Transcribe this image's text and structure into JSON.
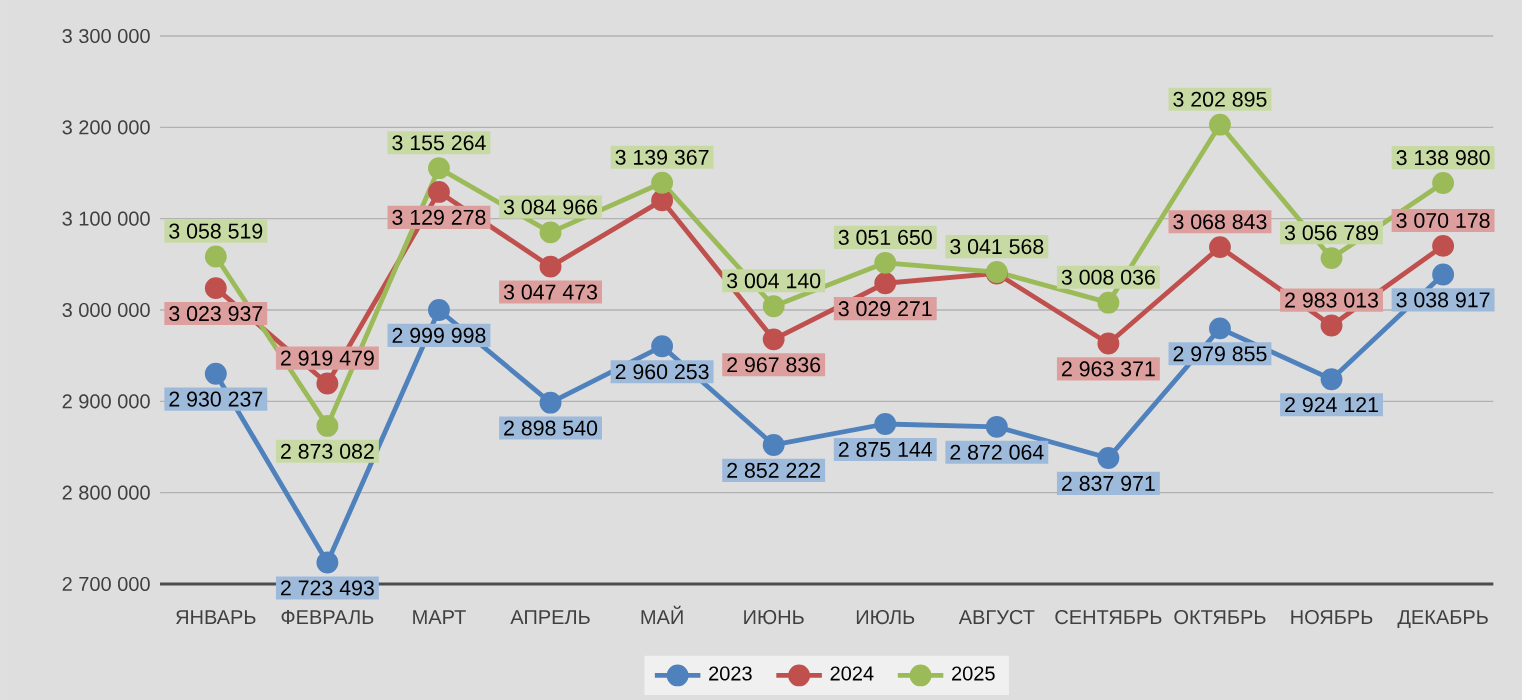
{
  "chart_data": {
    "type": "line",
    "categories": [
      "ЯНВАРЬ",
      "ФЕВРАЛЬ",
      "МАРТ",
      "АПРЕЛЬ",
      "МАЙ",
      "ИЮНЬ",
      "ИЮЛЬ",
      "АВГУСТ",
      "СЕНТЯБРЬ",
      "ОКТЯБРЬ",
      "НОЯБРЬ",
      "ДЕКАБРЬ"
    ],
    "series": [
      {
        "name": "2023",
        "color": "#4f81bd",
        "values": [
          2930237,
          2723493,
          2999998,
          2898540,
          2960253,
          2852222,
          2875144,
          2872064,
          2837971,
          2979855,
          2924121,
          3038917
        ],
        "value_labels": [
          "2 930 237",
          "2 723 493",
          "2 999 998",
          "2 898 540",
          "2 960 253",
          "2 852 222",
          "2 875 144",
          "2 872 064",
          "2 837 971",
          "2 979 855",
          "2 924 121",
          "3 038 917"
        ]
      },
      {
        "name": "2024",
        "color": "#c0504d",
        "values": [
          3023937,
          2919479,
          3129278,
          3047473,
          3120000,
          2967836,
          3029271,
          3040000,
          2963371,
          3068843,
          2983013,
          3070178
        ],
        "value_labels": [
          "3 023 937",
          "2 919 479",
          "3 129 278",
          "3 047 473",
          null,
          "2 967 836",
          "3 029 271",
          null,
          "2 963 371",
          "3 068 843",
          "2 983 013",
          "3 070 178"
        ]
      },
      {
        "name": "2025",
        "color": "#9bbb59",
        "values": [
          3058519,
          2873082,
          3155264,
          3084966,
          3139367,
          3004140,
          3051650,
          3041568,
          3008036,
          3202895,
          3056789,
          3138980
        ],
        "value_labels": [
          "3 058 519",
          "2 873 082",
          "3 155 264",
          "3 084 966",
          "3 139 367",
          "3 004 140",
          "3 051 650",
          "3 041 568",
          "3 008 036",
          "3 202 895",
          "3 056 789",
          "3 138 980"
        ]
      }
    ],
    "ylim": [
      2700000,
      3300000
    ],
    "yticks": [
      {
        "value": 2700000,
        "label": "2 700 000"
      },
      {
        "value": 2800000,
        "label": "2 800 000"
      },
      {
        "value": 2900000,
        "label": "2 900 000"
      },
      {
        "value": 3000000,
        "label": "3 000 000"
      },
      {
        "value": 3100000,
        "label": "3 100 000"
      },
      {
        "value": 3200000,
        "label": "3 200 000"
      },
      {
        "value": 3300000,
        "label": "3 300 000"
      }
    ],
    "grid": "y",
    "legend": "bottom",
    "marker": "circle",
    "line_style": "solid"
  }
}
